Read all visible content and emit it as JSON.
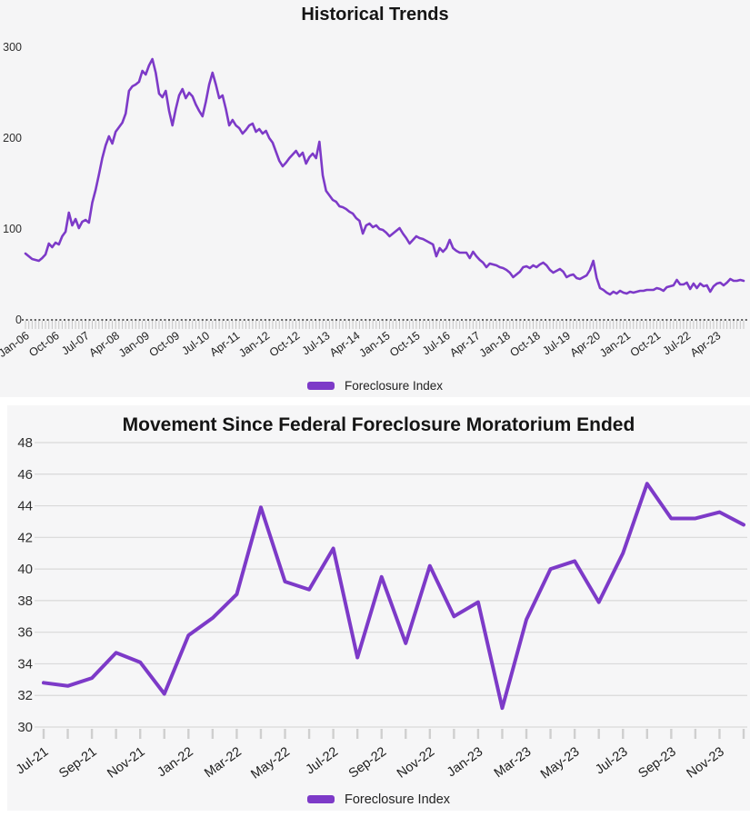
{
  "chart_data": [
    {
      "type": "line",
      "title": "Historical Trends",
      "series_name": "Foreclosure Index",
      "x_frequency": "monthly",
      "x_start": "Jan-06",
      "x_end": "Dec-23",
      "x_tick_interval_months": 9,
      "x_tick_labels": [
        "Jan-06",
        "Oct-06",
        "Jul-07",
        "Apr-08",
        "Jan-09",
        "Oct-09",
        "Jul-10",
        "Apr-11",
        "Jan-12",
        "Oct-12",
        "Jul-13",
        "Apr-14",
        "Jan-15",
        "Oct-15",
        "Jul-16",
        "Apr-17",
        "Jan-18",
        "Oct-18",
        "Jul-19",
        "Apr-20",
        "Jan-21",
        "Oct-21",
        "Jul-22",
        "Apr-23"
      ],
      "y_tick_labels": [
        0,
        100,
        200,
        300
      ],
      "ylim": [
        0,
        300
      ],
      "grid": false,
      "legend_position": "bottom",
      "line_color": "#7d3ac8",
      "values": [
        73,
        70,
        67,
        66,
        65,
        68,
        72,
        84,
        80,
        85,
        83,
        92,
        97,
        118,
        104,
        111,
        101,
        108,
        110,
        107,
        129,
        143,
        160,
        178,
        192,
        202,
        194,
        207,
        212,
        217,
        227,
        252,
        257,
        259,
        262,
        274,
        270,
        280,
        287,
        272,
        249,
        245,
        252,
        230,
        214,
        232,
        247,
        254,
        244,
        250,
        246,
        237,
        230,
        224,
        240,
        259,
        272,
        259,
        244,
        247,
        232,
        214,
        220,
        214,
        211,
        205,
        209,
        214,
        216,
        207,
        210,
        205,
        208,
        200,
        195,
        185,
        175,
        169,
        173,
        178,
        182,
        186,
        180,
        184,
        172,
        179,
        183,
        178,
        196,
        159,
        142,
        137,
        132,
        130,
        125,
        124,
        122,
        119,
        117,
        112,
        109,
        95,
        104,
        106,
        102,
        104,
        100,
        99,
        96,
        92,
        95,
        98,
        101,
        95,
        90,
        84,
        88,
        92,
        90,
        89,
        87,
        85,
        83,
        70,
        79,
        75,
        79,
        88,
        79,
        76,
        74,
        74,
        74,
        68,
        75,
        70,
        66,
        63,
        58,
        62,
        61,
        60,
        58,
        57,
        55,
        52,
        47,
        50,
        53,
        58,
        59,
        57,
        60,
        58,
        61,
        63,
        60,
        55,
        52,
        54,
        56,
        53,
        47,
        49,
        50,
        46,
        45,
        47,
        49,
        55,
        65,
        46,
        35,
        33,
        30,
        28,
        31,
        29,
        32,
        30,
        29,
        31,
        30,
        31,
        32,
        32,
        33,
        33,
        33,
        35,
        34,
        32,
        36,
        37,
        38,
        44,
        39,
        39,
        41,
        34,
        40,
        35,
        40,
        37,
        38,
        31,
        37,
        40,
        41,
        38,
        41,
        45,
        43,
        43,
        44,
        43
      ]
    },
    {
      "type": "line",
      "title": "Movement Since Federal Foreclosure Moratorium Ended",
      "series_name": "Foreclosure Index",
      "x_frequency": "monthly",
      "categories": [
        "Jul-21",
        "Aug-21",
        "Sep-21",
        "Oct-21",
        "Nov-21",
        "Dec-21",
        "Jan-22",
        "Feb-22",
        "Mar-22",
        "Apr-22",
        "May-22",
        "Jun-22",
        "Jul-22",
        "Aug-22",
        "Sep-22",
        "Oct-22",
        "Nov-22",
        "Dec-22",
        "Jan-23",
        "Feb-23",
        "Mar-23",
        "Apr-23",
        "May-23",
        "Jun-23",
        "Jul-23",
        "Aug-23",
        "Sep-23",
        "Oct-23",
        "Nov-23",
        "Dec-23"
      ],
      "x_tick_interval_months": 2,
      "x_tick_labels": [
        "Jul-21",
        "Sep-21",
        "Nov-21",
        "Jan-22",
        "Mar-22",
        "May-22",
        "Jul-22",
        "Sep-22",
        "Nov-22",
        "Jan-23",
        "Mar-23",
        "May-23",
        "Jul-23",
        "Sep-23",
        "Nov-23"
      ],
      "y_tick_labels": [
        30,
        32,
        34,
        36,
        38,
        40,
        42,
        44,
        46,
        48
      ],
      "ylim": [
        30,
        48
      ],
      "grid": true,
      "legend_position": "bottom",
      "line_color": "#7d3ac8",
      "values": [
        32.8,
        32.6,
        33.1,
        34.7,
        34.1,
        32.1,
        35.8,
        36.9,
        38.4,
        43.9,
        39.2,
        38.7,
        41.3,
        34.4,
        39.5,
        35.3,
        40.2,
        37.0,
        37.9,
        31.2,
        36.8,
        40.0,
        40.5,
        37.9,
        41.0,
        45.4,
        43.2,
        43.2,
        43.6,
        42.8
      ]
    }
  ]
}
